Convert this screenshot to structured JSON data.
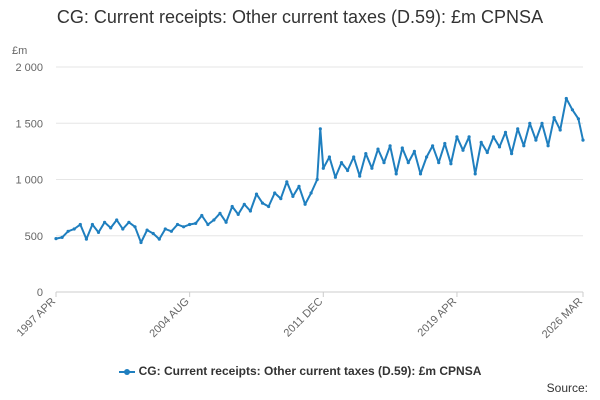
{
  "chart_data": {
    "type": "line",
    "title": "CG: Current receipts: Other current taxes (D.59): £m CPNSA",
    "ylabel": "£m",
    "xlabel": "",
    "ylim": [
      0,
      2000
    ],
    "yticks": [
      {
        "value": 0,
        "label": "0"
      },
      {
        "value": 500,
        "label": "500"
      },
      {
        "value": 1000,
        "label": "1 000"
      },
      {
        "value": 1500,
        "label": "1 500"
      },
      {
        "value": 2000,
        "label": "2 000"
      }
    ],
    "xlim": [
      "1997-04",
      "2026-03"
    ],
    "xticks": [
      {
        "value": "1997-04",
        "label": "1997 APR"
      },
      {
        "value": "2004-08",
        "label": "2004 AUG"
      },
      {
        "value": "2011-12",
        "label": "2011 DEC"
      },
      {
        "value": "2019-04",
        "label": "2019 APR"
      },
      {
        "value": "2026-03",
        "label": "2026 MAR"
      }
    ],
    "grid": "horizontal",
    "legend_position": "bottom",
    "color": "#1f7fbf",
    "series": [
      {
        "name": "CG: Current receipts: Other current taxes (D.59): £m CPNSA",
        "points": [
          [
            "1997-04",
            475
          ],
          [
            "1997-08",
            485
          ],
          [
            "1997-12",
            540
          ],
          [
            "1998-04",
            560
          ],
          [
            "1998-08",
            600
          ],
          [
            "1998-12",
            470
          ],
          [
            "1999-04",
            600
          ],
          [
            "1999-08",
            530
          ],
          [
            "1999-12",
            620
          ],
          [
            "2000-04",
            570
          ],
          [
            "2000-08",
            640
          ],
          [
            "2000-12",
            560
          ],
          [
            "2001-04",
            620
          ],
          [
            "2001-08",
            580
          ],
          [
            "2001-12",
            440
          ],
          [
            "2002-04",
            550
          ],
          [
            "2002-08",
            520
          ],
          [
            "2002-12",
            470
          ],
          [
            "2003-04",
            560
          ],
          [
            "2003-08",
            540
          ],
          [
            "2003-12",
            600
          ],
          [
            "2004-04",
            580
          ],
          [
            "2004-08",
            600
          ],
          [
            "2004-12",
            610
          ],
          [
            "2005-04",
            680
          ],
          [
            "2005-08",
            600
          ],
          [
            "2005-12",
            640
          ],
          [
            "2006-04",
            700
          ],
          [
            "2006-08",
            620
          ],
          [
            "2006-12",
            760
          ],
          [
            "2007-04",
            690
          ],
          [
            "2007-08",
            780
          ],
          [
            "2007-12",
            720
          ],
          [
            "2008-04",
            870
          ],
          [
            "2008-08",
            790
          ],
          [
            "2008-12",
            760
          ],
          [
            "2009-04",
            880
          ],
          [
            "2009-08",
            830
          ],
          [
            "2009-12",
            980
          ],
          [
            "2010-04",
            850
          ],
          [
            "2010-08",
            940
          ],
          [
            "2010-12",
            780
          ],
          [
            "2011-04",
            880
          ],
          [
            "2011-08",
            1000
          ],
          [
            "2011-10",
            1450
          ],
          [
            "2011-12",
            1100
          ],
          [
            "2012-04",
            1200
          ],
          [
            "2012-08",
            1020
          ],
          [
            "2012-12",
            1150
          ],
          [
            "2013-04",
            1080
          ],
          [
            "2013-08",
            1200
          ],
          [
            "2013-12",
            1030
          ],
          [
            "2014-04",
            1230
          ],
          [
            "2014-08",
            1100
          ],
          [
            "2014-12",
            1270
          ],
          [
            "2015-04",
            1150
          ],
          [
            "2015-08",
            1300
          ],
          [
            "2015-12",
            1050
          ],
          [
            "2016-04",
            1280
          ],
          [
            "2016-08",
            1150
          ],
          [
            "2016-12",
            1250
          ],
          [
            "2017-04",
            1050
          ],
          [
            "2017-08",
            1200
          ],
          [
            "2017-12",
            1300
          ],
          [
            "2018-04",
            1150
          ],
          [
            "2018-08",
            1320
          ],
          [
            "2018-12",
            1140
          ],
          [
            "2019-04",
            1380
          ],
          [
            "2019-08",
            1260
          ],
          [
            "2019-12",
            1380
          ],
          [
            "2020-04",
            1050
          ],
          [
            "2020-08",
            1330
          ],
          [
            "2020-12",
            1240
          ],
          [
            "2021-04",
            1380
          ],
          [
            "2021-08",
            1290
          ],
          [
            "2021-12",
            1420
          ],
          [
            "2022-04",
            1230
          ],
          [
            "2022-08",
            1450
          ],
          [
            "2022-12",
            1300
          ],
          [
            "2023-04",
            1500
          ],
          [
            "2023-08",
            1350
          ],
          [
            "2023-12",
            1500
          ],
          [
            "2024-04",
            1300
          ],
          [
            "2024-08",
            1550
          ],
          [
            "2024-12",
            1440
          ],
          [
            "2025-04",
            1720
          ],
          [
            "2025-08",
            1620
          ],
          [
            "2025-12",
            1540
          ],
          [
            "2026-03",
            1350
          ]
        ]
      }
    ]
  },
  "source_label": "Source:"
}
